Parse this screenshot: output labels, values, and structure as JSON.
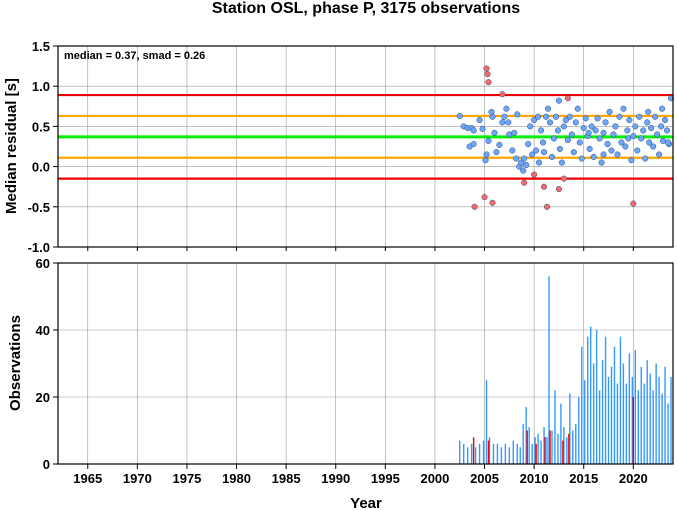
{
  "chart_data": [
    {
      "type": "scatter",
      "title": "Station OSL, phase P, 3175 observations",
      "annotation": "median = 0.37, smad = 0.26",
      "xlabel": "",
      "ylabel": "Median residual [s]",
      "xlim": [
        1962,
        2024
      ],
      "ylim": [
        -1.0,
        1.5
      ],
      "yticks": [
        "-1.0",
        "-0.5",
        "0.0",
        "0.5",
        "1.0",
        "1.5"
      ],
      "grid": true,
      "reference_lines": [
        {
          "y": 0.37,
          "color": "#00ee00"
        },
        {
          "y": 0.63,
          "color": "#ffa500"
        },
        {
          "y": 0.11,
          "color": "#ffa500"
        },
        {
          "y": 0.89,
          "color": "#ee0000"
        },
        {
          "y": -0.15,
          "color": "#ee0000"
        }
      ],
      "series": [
        {
          "color": "#6ca6f8",
          "points": [
            [
              2002.5,
              0.63
            ],
            [
              2002.9,
              0.5
            ],
            [
              2003.3,
              0.48
            ],
            [
              2003.7,
              0.48
            ],
            [
              2003.9,
              0.45
            ],
            [
              2003.5,
              0.25
            ],
            [
              2003.9,
              0.28
            ],
            [
              2004.5,
              0.58
            ],
            [
              2004.8,
              0.47
            ],
            [
              2005.1,
              0.08
            ],
            [
              2005.2,
              0.15
            ],
            [
              2005.4,
              0.32
            ],
            [
              2005.7,
              0.68
            ],
            [
              2005.8,
              0.62
            ],
            [
              2006.0,
              0.42
            ],
            [
              2006.2,
              0.18
            ],
            [
              2006.5,
              0.27
            ],
            [
              2006.8,
              0.55
            ],
            [
              2007.0,
              0.62
            ],
            [
              2007.2,
              0.72
            ],
            [
              2007.4,
              0.55
            ],
            [
              2007.5,
              0.4
            ],
            [
              2007.8,
              0.2
            ],
            [
              2008.0,
              0.42
            ],
            [
              2008.2,
              0.1
            ],
            [
              2008.3,
              0.65
            ],
            [
              2008.5,
              0.0
            ],
            [
              2008.7,
              0.05
            ],
            [
              2008.9,
              -0.05
            ],
            [
              2009.0,
              0.1
            ],
            [
              2009.2,
              0.02
            ],
            [
              2009.4,
              0.28
            ],
            [
              2009.6,
              0.5
            ],
            [
              2009.8,
              0.15
            ],
            [
              2010.0,
              0.58
            ],
            [
              2010.2,
              0.2
            ],
            [
              2010.4,
              0.62
            ],
            [
              2010.5,
              0.05
            ],
            [
              2010.7,
              0.45
            ],
            [
              2010.9,
              0.3
            ],
            [
              2011.0,
              0.18
            ],
            [
              2011.2,
              0.62
            ],
            [
              2011.4,
              0.72
            ],
            [
              2011.6,
              0.55
            ],
            [
              2011.8,
              0.12
            ],
            [
              2012.0,
              0.35
            ],
            [
              2012.2,
              0.62
            ],
            [
              2012.4,
              0.45
            ],
            [
              2012.6,
              0.22
            ],
            [
              2012.8,
              0.05
            ],
            [
              2013.0,
              0.5
            ],
            [
              2013.2,
              0.58
            ],
            [
              2013.4,
              0.33
            ],
            [
              2013.6,
              0.62
            ],
            [
              2013.8,
              0.4
            ],
            [
              2014.0,
              0.18
            ],
            [
              2014.2,
              0.55
            ],
            [
              2014.4,
              0.72
            ],
            [
              2014.6,
              0.3
            ],
            [
              2014.8,
              0.1
            ],
            [
              2015.0,
              0.48
            ],
            [
              2015.2,
              0.6
            ],
            [
              2015.4,
              0.38
            ],
            [
              2015.6,
              0.22
            ],
            [
              2015.8,
              0.5
            ],
            [
              2016.0,
              0.12
            ],
            [
              2016.2,
              0.45
            ],
            [
              2016.4,
              0.6
            ],
            [
              2016.6,
              0.35
            ],
            [
              2016.8,
              0.05
            ],
            [
              2017.0,
              0.42
            ],
            [
              2017.2,
              0.55
            ],
            [
              2017.4,
              0.28
            ],
            [
              2017.6,
              0.68
            ],
            [
              2017.8,
              0.2
            ],
            [
              2018.0,
              0.4
            ],
            [
              2018.2,
              0.5
            ],
            [
              2018.4,
              0.15
            ],
            [
              2018.6,
              0.62
            ],
            [
              2018.8,
              0.3
            ],
            [
              2019.0,
              0.72
            ],
            [
              2019.2,
              0.25
            ],
            [
              2019.4,
              0.45
            ],
            [
              2019.6,
              0.58
            ],
            [
              2019.8,
              0.08
            ],
            [
              2020.0,
              0.38
            ],
            [
              2020.2,
              0.5
            ],
            [
              2020.4,
              0.2
            ],
            [
              2020.6,
              0.62
            ],
            [
              2020.8,
              0.35
            ],
            [
              2021.0,
              0.45
            ],
            [
              2021.2,
              0.1
            ],
            [
              2021.4,
              0.55
            ],
            [
              2021.6,
              0.3
            ],
            [
              2021.8,
              0.48
            ],
            [
              2022.0,
              0.25
            ],
            [
              2022.2,
              0.62
            ],
            [
              2022.4,
              0.4
            ],
            [
              2022.6,
              0.15
            ],
            [
              2022.8,
              0.5
            ],
            [
              2023.0,
              0.32
            ],
            [
              2023.2,
              0.58
            ],
            [
              2023.4,
              0.45
            ],
            [
              2023.6,
              0.28
            ],
            [
              2023.8,
              0.85
            ],
            [
              2012.5,
              0.82
            ],
            [
              2015.5,
              0.42
            ],
            [
              2017.0,
              0.15
            ],
            [
              2019.5,
              0.35
            ],
            [
              2021.5,
              0.68
            ],
            [
              2022.9,
              0.72
            ],
            [
              2023.5,
              0.3
            ]
          ]
        },
        {
          "color": "#f26b6b",
          "points": [
            [
              2004.0,
              -0.5
            ],
            [
              2005.0,
              -0.38
            ],
            [
              2005.2,
              1.22
            ],
            [
              2005.3,
              1.15
            ],
            [
              2005.4,
              1.05
            ],
            [
              2005.8,
              -0.45
            ],
            [
              2006.8,
              0.9
            ],
            [
              2009.0,
              -0.2
            ],
            [
              2010.0,
              -0.1
            ],
            [
              2011.0,
              -0.25
            ],
            [
              2011.3,
              -0.5
            ],
            [
              2012.5,
              -0.28
            ],
            [
              2013.0,
              -0.15
            ],
            [
              2013.4,
              0.85
            ],
            [
              2020.0,
              -0.46
            ]
          ]
        }
      ]
    },
    {
      "type": "bar",
      "xlabel": "Year",
      "ylabel": "Observations",
      "xlim": [
        1962,
        2024
      ],
      "ylim": [
        0,
        60
      ],
      "xticks": [
        "1965",
        "1970",
        "1975",
        "1980",
        "1985",
        "1990",
        "1995",
        "2000",
        "2005",
        "2010",
        "2015",
        "2020"
      ],
      "yticks": [
        "0",
        "20",
        "40",
        "60"
      ],
      "grid": true,
      "series": [
        {
          "color": "#3399ff",
          "bars": [
            [
              2002.5,
              7
            ],
            [
              2002.9,
              6
            ],
            [
              2003.3,
              5
            ],
            [
              2003.7,
              6
            ],
            [
              2004.1,
              5
            ],
            [
              2004.5,
              6
            ],
            [
              2004.9,
              7
            ],
            [
              2005.2,
              25
            ],
            [
              2005.5,
              8
            ],
            [
              2005.9,
              6
            ],
            [
              2006.3,
              6
            ],
            [
              2006.7,
              5
            ],
            [
              2007.1,
              6
            ],
            [
              2007.5,
              5
            ],
            [
              2007.9,
              7
            ],
            [
              2008.3,
              6
            ],
            [
              2008.6,
              5
            ],
            [
              2008.9,
              12
            ],
            [
              2009.2,
              17
            ],
            [
              2009.5,
              11
            ],
            [
              2009.8,
              6
            ],
            [
              2010.1,
              8
            ],
            [
              2010.4,
              9
            ],
            [
              2010.7,
              7
            ],
            [
              2011.0,
              11
            ],
            [
              2011.3,
              8
            ],
            [
              2011.5,
              56
            ],
            [
              2011.8,
              10
            ],
            [
              2012.1,
              22
            ],
            [
              2012.4,
              9
            ],
            [
              2012.7,
              18
            ],
            [
              2013.0,
              11
            ],
            [
              2013.3,
              8
            ],
            [
              2013.6,
              21
            ],
            [
              2013.9,
              10
            ],
            [
              2014.2,
              12
            ],
            [
              2014.5,
              20
            ],
            [
              2014.8,
              35
            ],
            [
              2015.1,
              25
            ],
            [
              2015.4,
              38
            ],
            [
              2015.7,
              41
            ],
            [
              2016.0,
              30
            ],
            [
              2016.3,
              40
            ],
            [
              2016.6,
              22
            ],
            [
              2016.9,
              31
            ],
            [
              2017.2,
              38
            ],
            [
              2017.5,
              26
            ],
            [
              2017.8,
              29
            ],
            [
              2018.1,
              35
            ],
            [
              2018.4,
              24
            ],
            [
              2018.7,
              38
            ],
            [
              2019.0,
              30
            ],
            [
              2019.3,
              24
            ],
            [
              2019.6,
              33
            ],
            [
              2019.9,
              26
            ],
            [
              2020.2,
              34
            ],
            [
              2020.5,
              22
            ],
            [
              2020.8,
              29
            ],
            [
              2021.1,
              24
            ],
            [
              2021.4,
              31
            ],
            [
              2021.7,
              27
            ],
            [
              2022.0,
              22
            ],
            [
              2022.3,
              30
            ],
            [
              2022.6,
              26
            ],
            [
              2022.9,
              21
            ],
            [
              2023.2,
              29
            ],
            [
              2023.5,
              18
            ],
            [
              2023.8,
              26
            ]
          ]
        },
        {
          "color": "#ee0000",
          "bars": [
            [
              2003.9,
              8
            ],
            [
              2005.4,
              7
            ],
            [
              2009.3,
              10
            ],
            [
              2010.2,
              6
            ],
            [
              2011.1,
              8
            ],
            [
              2011.6,
              10
            ],
            [
              2012.9,
              7
            ],
            [
              2013.5,
              9
            ],
            [
              2020.0,
              20
            ]
          ]
        }
      ]
    }
  ]
}
